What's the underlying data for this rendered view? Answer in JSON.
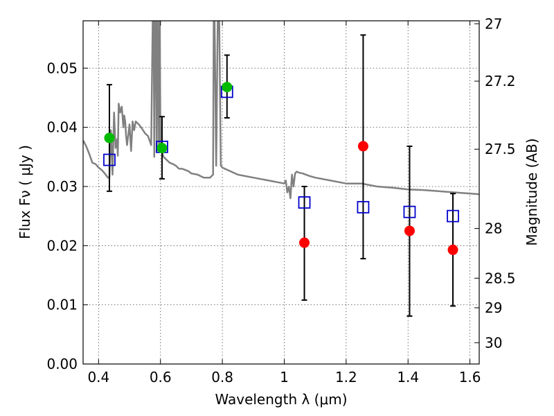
{
  "chart_data": {
    "type": "scatter",
    "title": "",
    "xlabel": "Wavelength  λ (μm)",
    "ylabel": "Flux  Fν  ( μJy )",
    "y2label": "Magnitude (AB)",
    "xlim": [
      0.35,
      1.63
    ],
    "ylim": [
      0.0,
      0.058
    ],
    "grid": true,
    "x_ticks": [
      0.4,
      0.6,
      0.8,
      1.0,
      1.2,
      1.4,
      1.6
    ],
    "x_tick_labels": [
      "0.4",
      "0.6",
      "0.8",
      "1",
      "1.2",
      "1.4",
      "1.6"
    ],
    "y_ticks": [
      0.0,
      0.01,
      0.02,
      0.03,
      0.04,
      0.05
    ],
    "y_tick_labels": [
      "0.00",
      "0.01",
      "0.02",
      "0.03",
      "0.04",
      "0.05"
    ],
    "y2_ticks": [
      {
        "flux": 0.0575,
        "label": "27"
      },
      {
        "flux": 0.0478,
        "label": "27.2"
      },
      {
        "flux": 0.0363,
        "label": "27.5"
      },
      {
        "flux": 0.0229,
        "label": "28"
      },
      {
        "flux": 0.0145,
        "label": "28.5"
      },
      {
        "flux": 0.0095,
        "label": "29"
      },
      {
        "flux": 0.0036,
        "label": "30"
      }
    ],
    "colors": {
      "model": "#808080",
      "green": "#00bb00",
      "red": "#ff0000",
      "square": "#0000cc",
      "errorbar": "#000000"
    },
    "model_sed": {
      "name": "",
      "x": [
        0.35,
        0.36,
        0.37,
        0.38,
        0.39,
        0.4,
        0.41,
        0.42,
        0.43,
        0.435,
        0.44,
        0.445,
        0.45,
        0.455,
        0.46,
        0.462,
        0.465,
        0.47,
        0.475,
        0.48,
        0.483,
        0.486,
        0.489,
        0.492,
        0.5,
        0.505,
        0.51,
        0.515,
        0.52,
        0.53,
        0.54,
        0.55,
        0.56,
        0.57,
        0.575,
        0.578,
        0.58,
        0.582,
        0.585,
        0.588,
        0.59,
        0.592,
        0.595,
        0.598,
        0.6,
        0.61,
        0.62,
        0.63,
        0.64,
        0.65,
        0.66,
        0.67,
        0.68,
        0.69,
        0.7,
        0.72,
        0.74,
        0.76,
        0.77,
        0.772,
        0.775,
        0.78,
        0.785,
        0.79,
        0.795,
        0.8,
        0.85,
        0.9,
        0.95,
        1.0,
        1.005,
        1.01,
        1.015,
        1.02,
        1.025,
        1.03,
        1.035,
        1.04,
        1.05,
        1.06,
        1.08,
        1.1,
        1.15,
        1.2,
        1.25,
        1.3,
        1.35,
        1.4,
        1.45,
        1.5,
        1.55,
        1.63
      ],
      "y": [
        0.0378,
        0.0368,
        0.0355,
        0.034,
        0.0338,
        0.0332,
        0.0328,
        0.0322,
        0.0315,
        0.0315,
        0.0395,
        0.032,
        0.0425,
        0.0365,
        0.038,
        0.0352,
        0.044,
        0.0425,
        0.0435,
        0.04,
        0.042,
        0.041,
        0.0385,
        0.037,
        0.0405,
        0.036,
        0.041,
        0.0395,
        0.041,
        0.0405,
        0.0398,
        0.039,
        0.0385,
        0.037,
        0.058,
        0.058,
        0.035,
        0.058,
        0.058,
        0.036,
        0.058,
        0.058,
        0.0372,
        0.058,
        0.0368,
        0.035,
        0.0345,
        0.034,
        0.0338,
        0.0335,
        0.033,
        0.033,
        0.0328,
        0.0326,
        0.0322,
        0.032,
        0.0315,
        0.0315,
        0.032,
        0.058,
        0.058,
        0.0335,
        0.058,
        0.058,
        0.0335,
        0.0332,
        0.032,
        0.0315,
        0.031,
        0.0305,
        0.031,
        0.029,
        0.03,
        0.028,
        0.032,
        0.03,
        0.0322,
        0.0325,
        0.0323,
        0.0322,
        0.0318,
        0.0315,
        0.031,
        0.0305,
        0.0305,
        0.03,
        0.0298,
        0.0295,
        0.0294,
        0.0292,
        0.029,
        0.0287
      ]
    },
    "square_points": [
      {
        "x": 0.435,
        "y": 0.0345
      },
      {
        "x": 0.605,
        "y": 0.0367
      },
      {
        "x": 0.815,
        "y": 0.046
      },
      {
        "x": 1.065,
        "y": 0.0273
      },
      {
        "x": 1.255,
        "y": 0.0265
      },
      {
        "x": 1.405,
        "y": 0.0257
      },
      {
        "x": 1.545,
        "y": 0.025
      }
    ],
    "green_points": [
      {
        "x": 0.435,
        "y": 0.0382
      },
      {
        "x": 0.605,
        "y": 0.0365
      },
      {
        "x": 0.815,
        "y": 0.0468
      }
    ],
    "red_points": [
      {
        "x": 1.065,
        "y": 0.0205
      },
      {
        "x": 1.255,
        "y": 0.0368
      },
      {
        "x": 1.405,
        "y": 0.0225
      },
      {
        "x": 1.545,
        "y": 0.0193
      }
    ],
    "error_bars": [
      {
        "x": 0.435,
        "low": 0.0292,
        "high": 0.0472
      },
      {
        "x": 0.605,
        "low": 0.0313,
        "high": 0.0418
      },
      {
        "x": 0.815,
        "low": 0.0416,
        "high": 0.0522
      },
      {
        "x": 1.065,
        "low": 0.0108,
        "high": 0.03
      },
      {
        "x": 1.255,
        "low": 0.0178,
        "high": 0.0556
      },
      {
        "x": 1.405,
        "low": 0.0081,
        "high": 0.0368
      },
      {
        "x": 1.545,
        "low": 0.0098,
        "high": 0.0288
      }
    ]
  }
}
